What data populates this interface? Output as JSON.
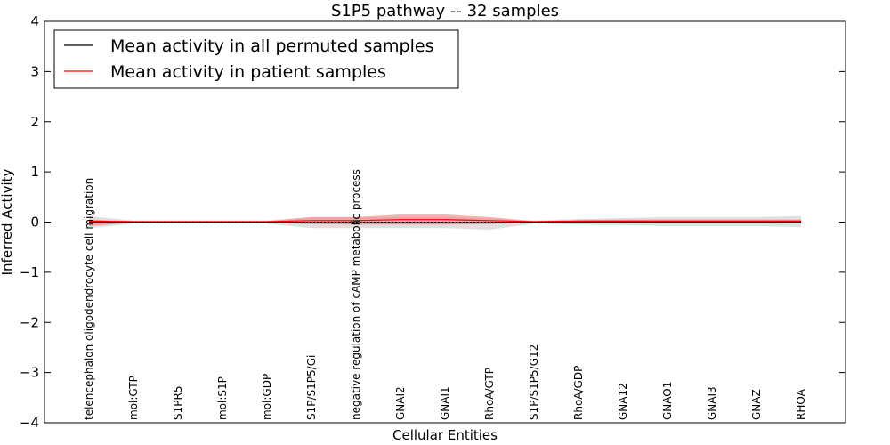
{
  "chart_data": {
    "type": "line",
    "title": "S1P5 pathway -- 32 samples",
    "xlabel": "Cellular Entities",
    "ylabel": "Inferred Activity",
    "ylim": [
      -4,
      4
    ],
    "yticks": [
      4,
      3,
      2,
      1,
      0,
      -1,
      -2,
      -3,
      -4
    ],
    "ytick_labels": [
      "4",
      "3",
      "2",
      "1",
      "0",
      "−1",
      "−2",
      "−3",
      "−4"
    ],
    "grid": false,
    "legend_position": "top-left",
    "categories": [
      "telencephalon oligodendrocyte cell migration",
      "mol:GTP",
      "S1PR5",
      "mol:S1P",
      "mol:GDP",
      "S1P/S1P5/Gi",
      "negative regulation of cAMP metabolic process",
      "GNAI2",
      "GNAI1",
      "RhoA/GTP",
      "S1P/S1P5/G12",
      "RhoA/GDP",
      "GNA12",
      "GNAO1",
      "GNAI3",
      "GNAZ",
      "RHOA"
    ],
    "series": [
      {
        "name": "Mean activity in all permuted samples",
        "color": "#000000",
        "band_color": "#bbbbbb",
        "values": [
          0.0,
          0.0,
          0.0,
          0.0,
          0.0,
          -0.01,
          -0.01,
          -0.01,
          -0.01,
          -0.01,
          0.0,
          0.0,
          0.0,
          0.0,
          0.0,
          0.0,
          0.0
        ],
        "lower": [
          -0.12,
          -0.03,
          -0.03,
          -0.03,
          -0.03,
          -0.12,
          -0.12,
          -0.12,
          -0.12,
          -0.15,
          -0.03,
          -0.05,
          -0.06,
          -0.08,
          -0.08,
          -0.08,
          -0.1
        ],
        "upper": [
          0.12,
          0.03,
          0.03,
          0.03,
          0.03,
          0.1,
          0.1,
          0.1,
          0.1,
          0.07,
          0.03,
          0.06,
          0.08,
          0.1,
          0.1,
          0.1,
          0.12
        ]
      },
      {
        "name": "Mean activity in patient samples",
        "color": "#ff0000",
        "band_color": "#f08080",
        "values": [
          0.02,
          0.01,
          0.01,
          0.01,
          0.01,
          0.03,
          0.03,
          0.05,
          0.05,
          0.03,
          0.01,
          0.02,
          0.02,
          0.02,
          0.02,
          0.02,
          0.02
        ],
        "lower": [
          -0.08,
          -0.01,
          -0.01,
          -0.01,
          -0.01,
          -0.04,
          -0.05,
          -0.05,
          -0.05,
          -0.04,
          -0.01,
          0.0,
          0.0,
          0.0,
          0.0,
          0.0,
          0.0
        ],
        "upper": [
          0.05,
          0.02,
          0.02,
          0.02,
          0.02,
          0.1,
          0.1,
          0.15,
          0.15,
          0.1,
          0.02,
          0.04,
          0.05,
          0.05,
          0.05,
          0.05,
          0.05
        ]
      }
    ]
  }
}
